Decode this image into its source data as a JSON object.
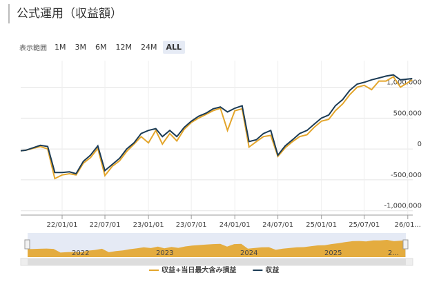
{
  "header": {
    "title": "公式運用（収益額）"
  },
  "range_selector": {
    "label": "表示範囲",
    "buttons": [
      "1M",
      "3M",
      "6M",
      "12M",
      "24M",
      "ALL"
    ],
    "active": "ALL"
  },
  "chart_data": {
    "type": "line",
    "x": [
      "21/07/10",
      "21/08/01",
      "21/09/01",
      "21/10/01",
      "21/11/01",
      "21/12/01",
      "22/01/01",
      "22/02/01",
      "22/03/01",
      "22/04/01",
      "22/05/01",
      "22/06/01",
      "22/07/01",
      "22/08/01",
      "22/09/01",
      "22/10/01",
      "22/11/01",
      "22/12/01",
      "23/01/01",
      "23/02/01",
      "23/03/01",
      "23/04/01",
      "23/05/01",
      "23/06/01",
      "23/07/01",
      "23/08/01",
      "23/09/01",
      "23/10/01",
      "23/11/01",
      "23/12/01",
      "24/01/01",
      "24/02/01",
      "24/03/01",
      "24/04/01",
      "24/05/01",
      "24/06/01",
      "24/07/01",
      "24/08/01",
      "24/09/01",
      "24/10/01",
      "24/11/01",
      "24/12/01",
      "25/01/01",
      "25/02/01",
      "25/03/01",
      "25/04/01",
      "25/05/01",
      "25/06/01",
      "25/07/01",
      "25/08/01",
      "25/09/01",
      "25/10/01",
      "25/11/01",
      "25/12/01",
      "26/01/20"
    ],
    "series": [
      {
        "name": "収益+当日最大含み損益",
        "color": "#e3a52b",
        "values": [
          -30000,
          -20000,
          10000,
          40000,
          0,
          -480000,
          -420000,
          -400000,
          -420000,
          -230000,
          -140000,
          10000,
          -430000,
          -280000,
          -190000,
          -40000,
          80000,
          200000,
          100000,
          300000,
          80000,
          250000,
          130000,
          320000,
          430000,
          500000,
          560000,
          620000,
          660000,
          300000,
          620000,
          650000,
          30000,
          120000,
          200000,
          220000,
          -120000,
          20000,
          120000,
          200000,
          230000,
          350000,
          450000,
          480000,
          620000,
          730000,
          880000,
          1000000,
          1030000,
          960000,
          1100000,
          1100000,
          1170000,
          1000000,
          1120000
        ]
      },
      {
        "name": "収益",
        "color": "#1b3b55",
        "values": [
          -30000,
          -20000,
          20000,
          60000,
          40000,
          -380000,
          -380000,
          -370000,
          -400000,
          -200000,
          -100000,
          50000,
          -350000,
          -250000,
          -150000,
          0,
          100000,
          250000,
          300000,
          330000,
          200000,
          300000,
          200000,
          350000,
          450000,
          530000,
          580000,
          650000,
          680000,
          600000,
          660000,
          700000,
          120000,
          150000,
          250000,
          300000,
          -100000,
          50000,
          150000,
          250000,
          300000,
          400000,
          500000,
          550000,
          700000,
          800000,
          950000,
          1050000,
          1080000,
          1120000,
          1150000,
          1180000,
          1200000,
          1120000,
          1140000
        ]
      }
    ],
    "xlim": [
      "21/07/10",
      "26/01/22"
    ],
    "xticks": [
      "22/01/01",
      "22/07/01",
      "23/01/01",
      "23/07/01",
      "24/01/01",
      "24/07/01",
      "25/01/01",
      "25/07/01",
      {
        "value": "26/01/01",
        "label": "26/01..."
      }
    ],
    "ylim": [
      -1070000,
      1430000
    ],
    "yticks": [
      {
        "value": 1000000,
        "label": "1,000,000"
      },
      {
        "value": 500000,
        "label": "500,000"
      },
      0,
      {
        "value": -500000,
        "label": "-500,000"
      },
      {
        "value": -1000000,
        "label": "-1,000,000"
      }
    ],
    "grid": true,
    "legend": "bottom"
  },
  "navigator": {
    "labels": [
      "2022",
      "2023",
      "2024",
      "2025",
      "2..."
    ]
  }
}
